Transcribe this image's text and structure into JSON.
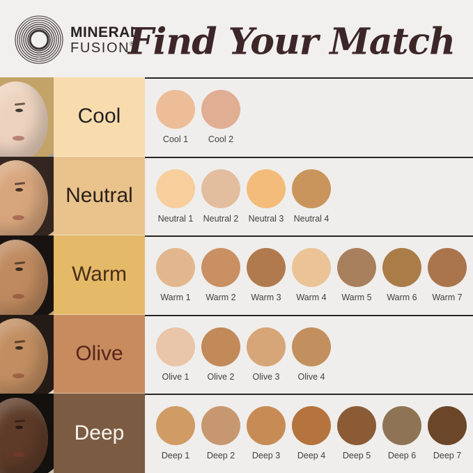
{
  "brand": {
    "line1": "MINERAL",
    "line2": "FUSION",
    "registered": "®"
  },
  "title": "Find Your Match",
  "colors": {
    "page_bg": "#F1F0EE",
    "panel_bg": "#EFEEEC",
    "separator": "#262626",
    "title_text": "#3D2628",
    "swatch_label_text": "#3F3F3F",
    "logo_text": "#262122"
  },
  "rows": [
    {
      "id": "cool",
      "label": "Cool",
      "block_color": "#F8DCAE",
      "label_color": "#222222",
      "portrait": {
        "backdrop": "#97A0A8",
        "hair": "#C3A368",
        "skin": "#EDD3BF"
      },
      "swatches": [
        {
          "name": "Cool 1",
          "color": "#EDBD98"
        },
        {
          "name": "Cool 2",
          "color": "#E0AE93"
        }
      ]
    },
    {
      "id": "neutral",
      "label": "Neutral",
      "block_color": "#E9C28C",
      "label_color": "#2A2018",
      "portrait": {
        "backdrop": "#D8B58E",
        "hair": "#332620",
        "skin": "#D8A67D"
      },
      "swatches": [
        {
          "name": "Neutral 1",
          "color": "#F7CE9C"
        },
        {
          "name": "Neutral 2",
          "color": "#E2BE9F"
        },
        {
          "name": "Neutral 3",
          "color": "#F4BC7A"
        },
        {
          "name": "Neutral 4",
          "color": "#C9955C"
        }
      ]
    },
    {
      "id": "warm",
      "label": "Warm",
      "block_color": "#E4B967",
      "label_color": "#4A2D18",
      "portrait": {
        "backdrop": "#C7A277",
        "hair": "#181311",
        "skin": "#BF8A5F"
      },
      "swatches": [
        {
          "name": "Warm 1",
          "color": "#E3B78E"
        },
        {
          "name": "Warm 2",
          "color": "#C99063"
        },
        {
          "name": "Warm 3",
          "color": "#B17A4E"
        },
        {
          "name": "Warm 4",
          "color": "#EBC397"
        },
        {
          "name": "Warm 5",
          "color": "#A9805D"
        },
        {
          "name": "Warm 6",
          "color": "#AA7C48"
        },
        {
          "name": "Warm 7",
          "color": "#AA744C"
        }
      ]
    },
    {
      "id": "olive",
      "label": "Olive",
      "block_color": "#C78B5E",
      "label_color": "#59241B",
      "portrait": {
        "backdrop": "#E6D8C5",
        "hair": "#241B17",
        "skin": "#C28E61"
      },
      "swatches": [
        {
          "name": "Olive 1",
          "color": "#E9C5A9"
        },
        {
          "name": "Olive 2",
          "color": "#C28959"
        },
        {
          "name": "Olive 3",
          "color": "#D6A578"
        },
        {
          "name": "Olive 4",
          "color": "#C28F5F"
        }
      ]
    },
    {
      "id": "deep",
      "label": "Deep",
      "block_color": "#7B5C42",
      "label_color": "#F9F5EE",
      "portrait": {
        "backdrop": "#CCC0AC",
        "hair": "#13100D",
        "skin": "#5E3B28"
      },
      "swatches": [
        {
          "name": "Deep 1",
          "color": "#D09B64"
        },
        {
          "name": "Deep 2",
          "color": "#C79870"
        },
        {
          "name": "Deep 3",
          "color": "#C78C55"
        },
        {
          "name": "Deep 4",
          "color": "#B5743D"
        },
        {
          "name": "Deep 5",
          "color": "#8B5B35"
        },
        {
          "name": "Deep 6",
          "color": "#8E7454"
        },
        {
          "name": "Deep 7",
          "color": "#6C4629"
        }
      ]
    }
  ],
  "chart_data": {
    "type": "table",
    "title": "Find Your Match",
    "row_headers": [
      "Cool",
      "Neutral",
      "Warm",
      "Olive",
      "Deep"
    ],
    "rows": [
      {
        "category": "Cool",
        "shades": [
          "Cool 1",
          "Cool 2"
        ],
        "colors": [
          "#EDBD98",
          "#E0AE93"
        ]
      },
      {
        "category": "Neutral",
        "shades": [
          "Neutral 1",
          "Neutral 2",
          "Neutral 3",
          "Neutral 4"
        ],
        "colors": [
          "#F7CE9C",
          "#E2BE9F",
          "#F4BC7A",
          "#C9955C"
        ]
      },
      {
        "category": "Warm",
        "shades": [
          "Warm 1",
          "Warm 2",
          "Warm 3",
          "Warm 4",
          "Warm 5",
          "Warm 6",
          "Warm 7"
        ],
        "colors": [
          "#E3B78E",
          "#C99063",
          "#B17A4E",
          "#EBC397",
          "#A9805D",
          "#AA7C48",
          "#AA744C"
        ]
      },
      {
        "category": "Olive",
        "shades": [
          "Olive 1",
          "Olive 2",
          "Olive 3",
          "Olive 4"
        ],
        "colors": [
          "#E9C5A9",
          "#C28959",
          "#D6A578",
          "#C28F5F"
        ]
      },
      {
        "category": "Deep",
        "shades": [
          "Deep 1",
          "Deep 2",
          "Deep 3",
          "Deep 4",
          "Deep 5",
          "Deep 6",
          "Deep 7"
        ],
        "colors": [
          "#D09B64",
          "#C79870",
          "#C78C55",
          "#B5743D",
          "#8B5B35",
          "#8E7454",
          "#6C4629"
        ]
      }
    ]
  }
}
